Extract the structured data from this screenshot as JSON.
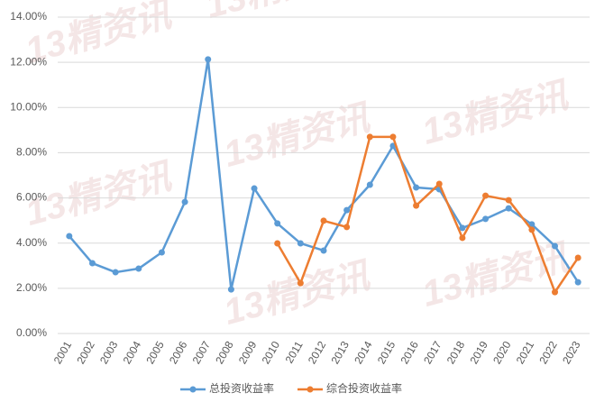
{
  "chart_data": {
    "type": "line",
    "watermark": "13精资讯",
    "categories": [
      "2001",
      "2002",
      "2003",
      "2004",
      "2005",
      "2006",
      "2007",
      "2008",
      "2009",
      "2010",
      "2011",
      "2012",
      "2013",
      "2014",
      "2015",
      "2016",
      "2017",
      "2018",
      "2019",
      "2020",
      "2021",
      "2022",
      "2023"
    ],
    "series": [
      {
        "name": "总投资收益率",
        "color": "#5b9bd5",
        "values": [
          4.31,
          3.11,
          2.71,
          2.87,
          3.59,
          5.82,
          12.13,
          1.95,
          6.42,
          4.87,
          3.99,
          3.67,
          5.46,
          6.58,
          8.3,
          6.46,
          6.38,
          4.67,
          5.07,
          5.54,
          4.83,
          3.87,
          2.27
        ]
      },
      {
        "name": "综合投资收益率",
        "color": "#ed7d31",
        "values": [
          null,
          null,
          null,
          null,
          null,
          null,
          null,
          null,
          null,
          3.99,
          2.23,
          4.99,
          4.71,
          8.7,
          8.7,
          5.66,
          6.62,
          4.23,
          6.1,
          5.9,
          4.59,
          1.83,
          3.35
        ]
      }
    ],
    "ylim": [
      0,
      14
    ],
    "yticks": [
      {
        "value": 0,
        "label": "0.00%"
      },
      {
        "value": 2,
        "label": "2.00%"
      },
      {
        "value": 4,
        "label": "4.00%"
      },
      {
        "value": 6,
        "label": "6.00%"
      },
      {
        "value": 8,
        "label": "8.00%"
      },
      {
        "value": 10,
        "label": "10.00%"
      },
      {
        "value": 12,
        "label": "12.00%"
      },
      {
        "value": 14,
        "label": "14.00%"
      }
    ],
    "grid": true,
    "legend": "bottom"
  }
}
